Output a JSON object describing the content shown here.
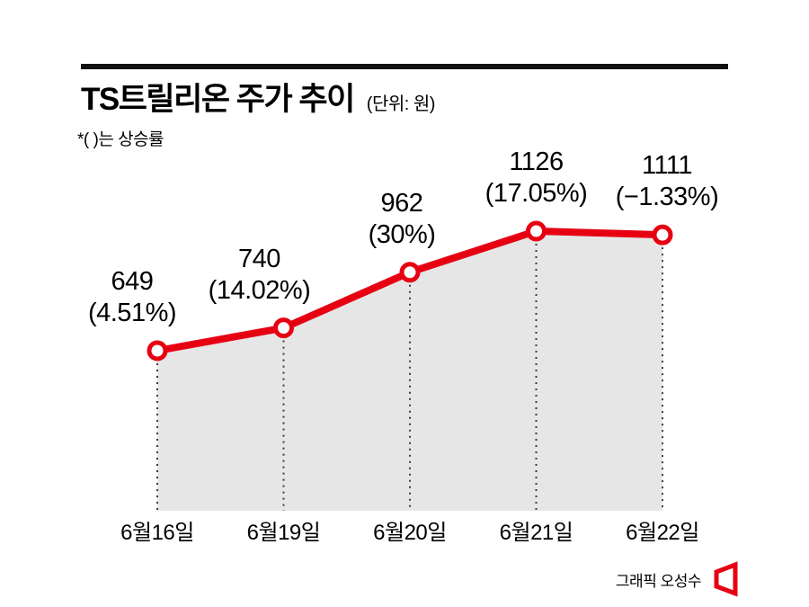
{
  "header": {
    "title": "TS트릴리온 주가 추이",
    "unit": "(단위: 원)",
    "note": "*( )는 상승률"
  },
  "chart_data": {
    "type": "line",
    "title": "TS트릴리온 주가 추이",
    "ylabel": "원",
    "categories": [
      "6월16일",
      "6월19일",
      "6월20일",
      "6월21일",
      "6월22일"
    ],
    "values": [
      649,
      740,
      962,
      1126,
      1111
    ],
    "labels": [
      {
        "value": "649",
        "pct": "(4.51%)"
      },
      {
        "value": "740",
        "pct": "(14.02%)"
      },
      {
        "value": "962",
        "pct": "(30%)"
      },
      {
        "value": "1126",
        "pct": "(17.05%)"
      },
      {
        "value": "1111",
        "pct": "(−1.33%)"
      }
    ],
    "line_color": "#e60012",
    "marker_fill": "#ffffff",
    "area_color": "#e6e6e6",
    "guide_color": "#3c3c3c",
    "legend": false,
    "grid": false
  },
  "footer": {
    "credit": "그래픽 오성수",
    "logo_color": "#e60012"
  }
}
